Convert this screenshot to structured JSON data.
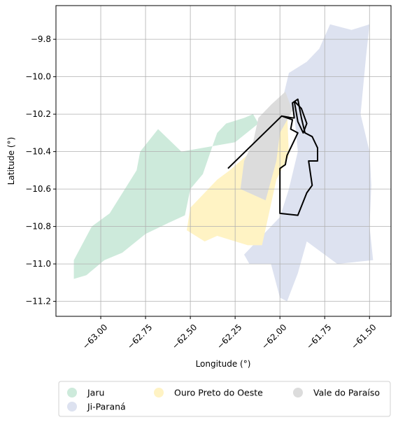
{
  "chart_data": {
    "type": "map",
    "xlabel": "Longitude (°)",
    "ylabel": "Latitude (°)",
    "xlim": [
      -63.25,
      -61.38
    ],
    "ylim": [
      -11.28,
      -9.62
    ],
    "x_ticks": [
      {
        "value": -63.0,
        "label": "−63.00"
      },
      {
        "value": -62.75,
        "label": "−62.75"
      },
      {
        "value": -62.5,
        "label": "−62.50"
      },
      {
        "value": -62.25,
        "label": "−62.25"
      },
      {
        "value": -62.0,
        "label": "−62.00"
      },
      {
        "value": -61.75,
        "label": "−61.75"
      },
      {
        "value": -61.5,
        "label": "−61.50"
      }
    ],
    "y_ticks": [
      {
        "value": -9.8,
        "label": "−9.8"
      },
      {
        "value": -10.0,
        "label": "−10.0"
      },
      {
        "value": -10.2,
        "label": "−10.2"
      },
      {
        "value": -10.4,
        "label": "−10.4"
      },
      {
        "value": -10.6,
        "label": "−10.6"
      },
      {
        "value": -10.8,
        "label": "−10.8"
      },
      {
        "value": -11.0,
        "label": "−11.0"
      },
      {
        "value": -11.2,
        "label": "−11.2"
      }
    ],
    "grid": true,
    "legend_position": "bottom",
    "regions": [
      {
        "name": "Jaru",
        "color": "#cdeadb",
        "polygon": [
          [
            -63.15,
            -11.08
          ],
          [
            -63.08,
            -11.06
          ],
          [
            -62.98,
            -10.98
          ],
          [
            -62.88,
            -10.94
          ],
          [
            -62.75,
            -10.84
          ],
          [
            -62.62,
            -10.78
          ],
          [
            -62.53,
            -10.74
          ],
          [
            -62.5,
            -10.6
          ],
          [
            -62.43,
            -10.52
          ],
          [
            -62.38,
            -10.38
          ],
          [
            -62.35,
            -10.3
          ],
          [
            -62.3,
            -10.25
          ],
          [
            -62.2,
            -10.22
          ],
          [
            -62.15,
            -10.2
          ],
          [
            -62.12,
            -10.25
          ],
          [
            -62.25,
            -10.35
          ],
          [
            -62.55,
            -10.4
          ],
          [
            -62.68,
            -10.28
          ],
          [
            -62.78,
            -10.4
          ],
          [
            -62.8,
            -10.5
          ],
          [
            -62.95,
            -10.73
          ],
          [
            -63.05,
            -10.8
          ],
          [
            -63.15,
            -10.98
          ],
          [
            -63.15,
            -11.08
          ]
        ]
      },
      {
        "name": "Ji-Paraná",
        "color": "#dde2f0",
        "polygon": [
          [
            -61.72,
            -9.72
          ],
          [
            -61.6,
            -9.75
          ],
          [
            -61.5,
            -9.72
          ],
          [
            -61.52,
            -9.9
          ],
          [
            -61.55,
            -10.2
          ],
          [
            -61.5,
            -10.4
          ],
          [
            -61.49,
            -10.58
          ],
          [
            -61.5,
            -10.8
          ],
          [
            -61.48,
            -10.98
          ],
          [
            -61.68,
            -11.0
          ],
          [
            -61.85,
            -10.88
          ],
          [
            -61.9,
            -11.05
          ],
          [
            -61.96,
            -11.2
          ],
          [
            -62.0,
            -11.18
          ],
          [
            -62.05,
            -11.0
          ],
          [
            -62.17,
            -11.0
          ],
          [
            -62.2,
            -10.95
          ],
          [
            -62.0,
            -10.75
          ],
          [
            -61.95,
            -10.6
          ],
          [
            -61.9,
            -10.4
          ],
          [
            -61.92,
            -10.2
          ],
          [
            -61.98,
            -10.1
          ],
          [
            -61.95,
            -9.98
          ],
          [
            -61.85,
            -9.92
          ],
          [
            -61.78,
            -9.85
          ],
          [
            -61.72,
            -9.72
          ]
        ]
      },
      {
        "name": "Ouro Preto do Oeste",
        "color": "#fff3c4",
        "polygon": [
          [
            -62.28,
            -10.5
          ],
          [
            -62.04,
            -10.3
          ],
          [
            -61.96,
            -10.18
          ],
          [
            -61.95,
            -10.42
          ],
          [
            -62.02,
            -10.55
          ],
          [
            -62.1,
            -10.9
          ],
          [
            -62.18,
            -10.9
          ],
          [
            -62.35,
            -10.85
          ],
          [
            -62.42,
            -10.88
          ],
          [
            -62.52,
            -10.82
          ],
          [
            -62.5,
            -10.7
          ],
          [
            -62.35,
            -10.55
          ],
          [
            -62.28,
            -10.5
          ]
        ]
      },
      {
        "name": "Vale do Paraíso",
        "color": "#dcdcdc",
        "polygon": [
          [
            -62.12,
            -10.22
          ],
          [
            -62.05,
            -10.15
          ],
          [
            -61.97,
            -10.08
          ],
          [
            -61.93,
            -10.18
          ],
          [
            -62.0,
            -10.3
          ],
          [
            -62.02,
            -10.45
          ],
          [
            -62.08,
            -10.66
          ],
          [
            -62.22,
            -10.6
          ],
          [
            -62.2,
            -10.45
          ],
          [
            -62.15,
            -10.35
          ],
          [
            -62.12,
            -10.22
          ]
        ]
      }
    ],
    "outlines": [
      [
        [
          -62.29,
          -10.49
        ],
        [
          -61.99,
          -10.21
        ],
        [
          -61.93,
          -10.23
        ],
        [
          -61.94,
          -10.28
        ],
        [
          -61.9,
          -10.3
        ],
        [
          -61.94,
          -10.38
        ],
        [
          -61.96,
          -10.42
        ],
        [
          -61.97,
          -10.47
        ],
        [
          -62.0,
          -10.49
        ],
        [
          -62.0,
          -10.73
        ],
        [
          -61.9,
          -10.74
        ],
        [
          -61.85,
          -10.62
        ],
        [
          -61.82,
          -10.58
        ],
        [
          -61.84,
          -10.45
        ],
        [
          -61.79,
          -10.45
        ],
        [
          -61.79,
          -10.38
        ],
        [
          -61.82,
          -10.32
        ],
        [
          -61.86,
          -10.3
        ],
        [
          -61.88,
          -10.22
        ],
        [
          -61.9,
          -10.12
        ],
        [
          -61.93,
          -10.14
        ],
        [
          -61.92,
          -10.22
        ],
        [
          -61.93,
          -10.22
        ],
        [
          -61.99,
          -10.21
        ],
        [
          -62.29,
          -10.49
        ]
      ],
      [
        [
          -61.92,
          -10.13
        ],
        [
          -61.9,
          -10.24
        ],
        [
          -61.87,
          -10.3
        ],
        [
          -61.85,
          -10.25
        ],
        [
          -61.88,
          -10.17
        ],
        [
          -61.92,
          -10.13
        ]
      ]
    ],
    "legend": [
      {
        "name": "Jaru",
        "color": "#cdeadb"
      },
      {
        "name": "Ji-Paraná",
        "color": "#dde2f0"
      },
      {
        "name": "Ouro Preto do Oeste",
        "color": "#fff3c4"
      },
      {
        "name": "Vale do Paraíso",
        "color": "#dcdcdc"
      }
    ]
  }
}
